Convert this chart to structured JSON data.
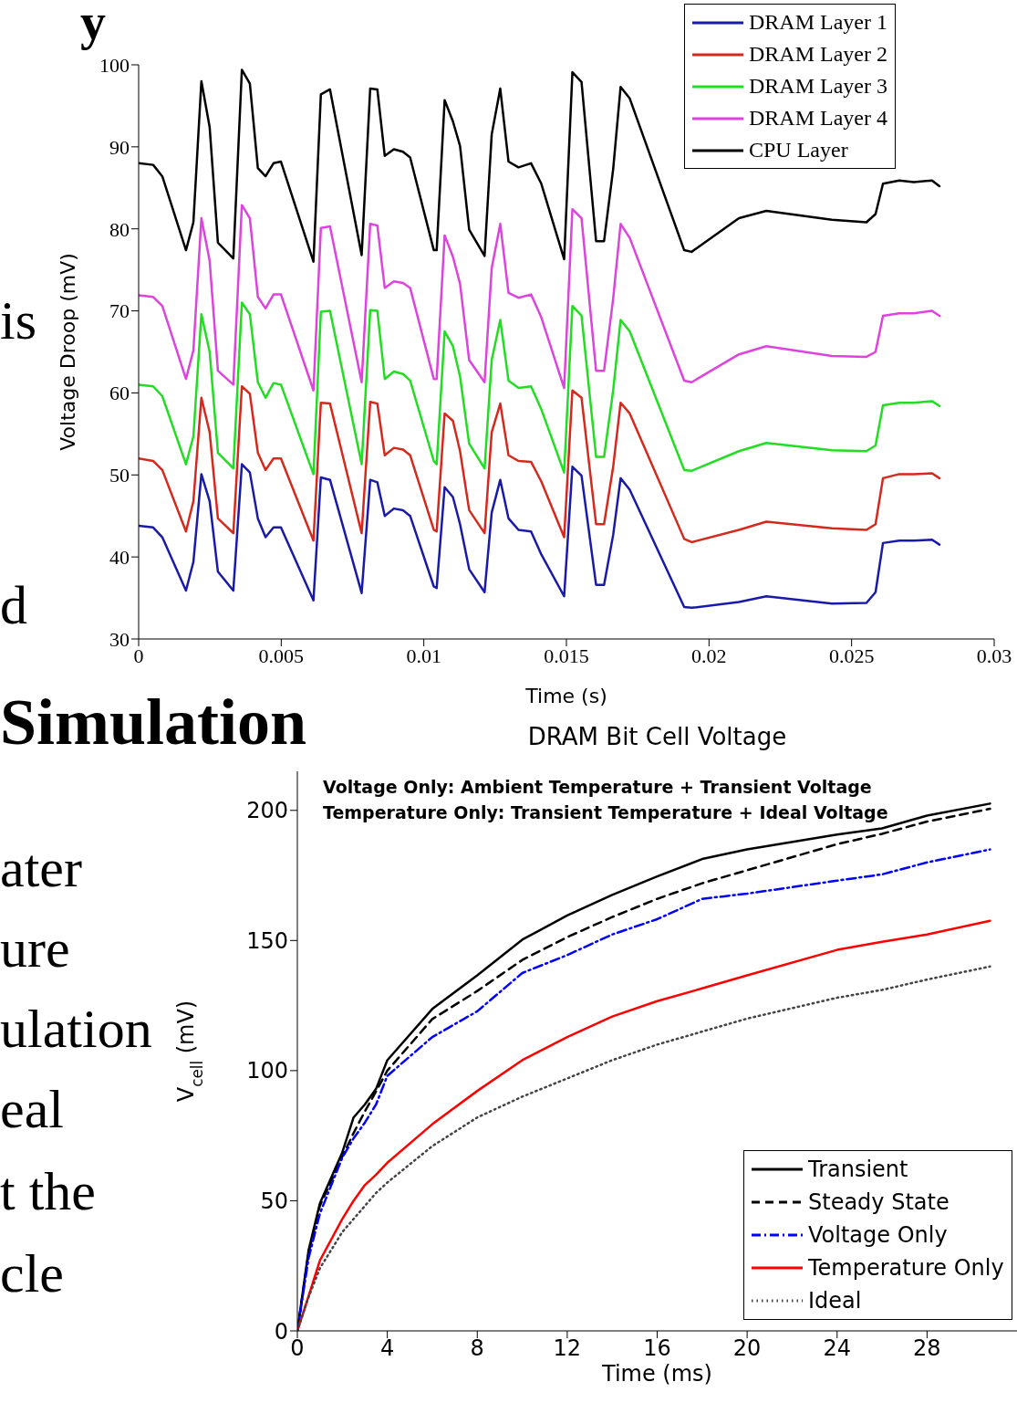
{
  "chart_data": [
    {
      "type": "line",
      "xlabel": "Time (s)",
      "ylabel": "Voltage Droop (mV)",
      "xlim": [
        0,
        0.03
      ],
      "ylim": [
        30,
        100
      ],
      "xticks": [
        0,
        0.005,
        0.01,
        0.015,
        0.02,
        0.025,
        0.03
      ],
      "yticks": [
        30,
        40,
        50,
        60,
        70,
        80,
        90,
        100
      ],
      "legend": "top right",
      "line_style": "solid",
      "marker": "none",
      "x": [
        0,
        0.00051,
        0.00083,
        0.00166,
        0.00192,
        0.0022,
        0.00249,
        0.00278,
        0.00332,
        0.00362,
        0.0039,
        0.00418,
        0.00445,
        0.00473,
        0.00499,
        0.00613,
        0.00639,
        0.00671,
        0.00782,
        0.00812,
        0.00837,
        0.00863,
        0.00895,
        0.00927,
        0.00952,
        0.01035,
        0.01045,
        0.01073,
        0.01102,
        0.01127,
        0.01159,
        0.01213,
        0.01238,
        0.01268,
        0.01297,
        0.01332,
        0.01376,
        0.01412,
        0.01492,
        0.01521,
        0.01553,
        0.01604,
        0.01632,
        0.01664,
        0.0169,
        0.01722,
        0.01913,
        0.01939,
        0.02105,
        0.02201,
        0.02431,
        0.02552,
        0.02584,
        0.0261,
        0.02667,
        0.02718,
        0.02782,
        0.02808
      ],
      "series": [
        {
          "name": "DRAM Layer 1",
          "color": "#1a1aa8",
          "values": [
            43.8,
            43.6,
            42.4,
            35.9,
            39.4,
            50.1,
            46.8,
            38.2,
            35.9,
            51.3,
            50.3,
            44.7,
            42.4,
            43.6,
            43.6,
            34.7,
            49.7,
            49.4,
            35.6,
            49.4,
            49.1,
            45.0,
            45.9,
            45.7,
            45.0,
            36.4,
            36.2,
            48.5,
            47.3,
            44.0,
            38.5,
            35.7,
            45.4,
            49.4,
            44.7,
            43.3,
            43.1,
            40.3,
            35.2,
            51.0,
            49.9,
            36.6,
            36.6,
            42.7,
            49.6,
            48.2,
            33.9,
            33.8,
            34.5,
            35.2,
            34.3,
            34.4,
            35.7,
            41.7,
            42.0,
            42.0,
            42.1,
            41.5
          ]
        },
        {
          "name": "DRAM Layer 2",
          "color": "#d42a1e",
          "values": [
            52.0,
            51.7,
            50.6,
            43.1,
            46.8,
            59.4,
            55.2,
            44.7,
            42.9,
            60.8,
            59.9,
            52.7,
            50.6,
            52.0,
            52.0,
            42.0,
            58.8,
            58.7,
            42.9,
            58.9,
            58.7,
            52.4,
            53.3,
            53.1,
            52.4,
            43.3,
            43.1,
            57.5,
            56.6,
            52.9,
            45.7,
            42.9,
            55.2,
            58.7,
            52.4,
            51.7,
            51.6,
            49.2,
            42.4,
            60.3,
            59.4,
            44.0,
            44.0,
            51.0,
            58.8,
            57.5,
            42.2,
            41.8,
            43.3,
            44.3,
            43.5,
            43.3,
            44.0,
            49.6,
            50.1,
            50.1,
            50.2,
            49.6
          ]
        },
        {
          "name": "DRAM Layer 3",
          "color": "#22dd22",
          "values": [
            61.0,
            60.8,
            59.6,
            51.3,
            54.7,
            69.6,
            65.0,
            52.7,
            50.8,
            71.0,
            69.6,
            61.3,
            59.4,
            61.2,
            61.0,
            50.1,
            69.9,
            70.0,
            51.3,
            70.1,
            70.0,
            61.7,
            62.6,
            62.3,
            61.5,
            51.7,
            51.3,
            67.5,
            65.7,
            62.0,
            53.8,
            50.8,
            64.0,
            68.9,
            61.5,
            60.6,
            60.8,
            58.0,
            50.3,
            70.6,
            69.4,
            52.2,
            52.2,
            60.3,
            68.9,
            67.5,
            50.6,
            50.5,
            52.9,
            53.9,
            53.0,
            52.9,
            53.6,
            58.5,
            58.8,
            58.8,
            59.0,
            58.4
          ]
        },
        {
          "name": "DRAM Layer 4",
          "color": "#dd44dd",
          "values": [
            71.9,
            71.7,
            70.6,
            61.7,
            65.2,
            81.3,
            76.1,
            62.7,
            61.0,
            82.9,
            81.3,
            71.7,
            70.3,
            72.0,
            72.0,
            60.3,
            80.1,
            80.3,
            61.3,
            80.6,
            80.4,
            72.8,
            73.6,
            73.4,
            72.8,
            61.7,
            61.7,
            79.2,
            76.6,
            73.3,
            64.0,
            61.3,
            75.2,
            80.6,
            72.2,
            71.6,
            72.0,
            69.2,
            60.6,
            82.4,
            81.3,
            62.7,
            62.7,
            71.5,
            80.6,
            78.9,
            61.5,
            61.3,
            64.7,
            65.7,
            64.5,
            64.4,
            65.0,
            69.4,
            69.7,
            69.7,
            70.0,
            69.4
          ]
        },
        {
          "name": "CPU Layer",
          "color": "#000000",
          "values": [
            88.0,
            87.8,
            86.4,
            77.4,
            80.8,
            98.0,
            92.4,
            78.3,
            76.4,
            99.4,
            97.7,
            87.4,
            86.4,
            88.0,
            88.2,
            76.0,
            96.4,
            97.0,
            76.8,
            97.1,
            97.0,
            88.9,
            89.7,
            89.4,
            88.7,
            77.4,
            77.4,
            95.7,
            93.1,
            90.1,
            79.9,
            76.7,
            91.5,
            97.1,
            88.2,
            87.5,
            88.0,
            85.5,
            76.3,
            99.1,
            97.9,
            78.5,
            78.5,
            87.3,
            97.3,
            95.9,
            77.4,
            77.2,
            81.3,
            82.2,
            81.1,
            80.8,
            81.8,
            85.5,
            85.9,
            85.7,
            85.9,
            85.2
          ]
        }
      ]
    },
    {
      "type": "line",
      "title": "DRAM Bit Cell Voltage",
      "xlabel": "Time (ms)",
      "ylabel": "V$_{cell}$ (mV)",
      "xlim": [
        0,
        32
      ],
      "ylim": [
        0,
        215
      ],
      "xticks": [
        0,
        4,
        8,
        12,
        16,
        20,
        24,
        28
      ],
      "yticks": [
        0,
        50,
        100,
        150,
        200
      ],
      "legend": "bottom right",
      "marker": "none",
      "annotations": [
        "Voltage Only: Ambient Temperature + Transient Voltage",
        "Temperature Only: Transient Temperature + Ideal Voltage"
      ],
      "x": [
        0,
        0.5,
        1,
        2,
        2.5,
        3,
        3.5,
        4,
        6,
        8,
        10,
        12,
        14,
        16,
        18,
        20,
        24,
        26,
        28,
        30.8
      ],
      "series": [
        {
          "name": "Transient",
          "color": "#000000",
          "line_style": "solid",
          "values": [
            0,
            31,
            48.9,
            68.6,
            82,
            87,
            93,
            104,
            123.7,
            136.6,
            150.3,
            159.6,
            167.5,
            174.6,
            181.3,
            185,
            190.7,
            193.1,
            198,
            202.6
          ]
        },
        {
          "name": "Steady State",
          "color": "#000000",
          "line_style": "dashed",
          "values": [
            0,
            30,
            48,
            67,
            76,
            84.3,
            92,
            100,
            119.8,
            130.6,
            142.5,
            151.3,
            159,
            166,
            172,
            177,
            187,
            191,
            195.7,
            200.6
          ]
        },
        {
          "name": "Voltage Only",
          "color": "#0000ff",
          "line_style": "dashdot",
          "values": [
            0,
            28,
            45,
            66.6,
            74,
            80,
            87,
            98,
            112.9,
            122.8,
            137.5,
            144.4,
            152.3,
            158.2,
            166,
            168,
            173,
            175.4,
            180,
            185
          ]
        },
        {
          "name": "Temperature Only",
          "color": "#ff0000",
          "line_style": "solid",
          "values": [
            0,
            13.4,
            27,
            43,
            50,
            56,
            60,
            64.6,
            79.4,
            92.2,
            104,
            112.9,
            120.8,
            126.7,
            131.6,
            136.6,
            146.4,
            149.5,
            152.3,
            157.6
          ]
        },
        {
          "name": "Ideal",
          "color": "#444444",
          "line_style": "dotted",
          "values": [
            0,
            13,
            24,
            38,
            43,
            48,
            53,
            57,
            71,
            82,
            90,
            97,
            104,
            110,
            115,
            120,
            128,
            131,
            135,
            140
          ]
        }
      ]
    },
    {
      "type": "other",
      "annotations": [
        "y",
        "is",
        "d",
        "Simulation",
        "ater",
        "ure",
        "ulation",
        "eal",
        "t the",
        "cle"
      ]
    }
  ]
}
